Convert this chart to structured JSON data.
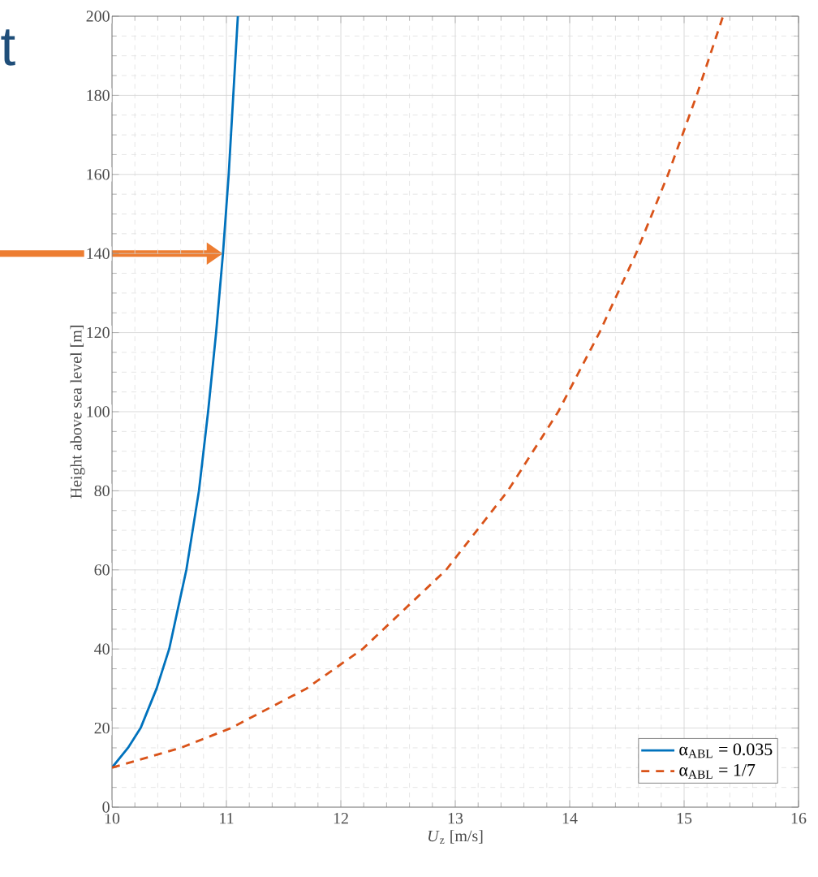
{
  "chart_data": {
    "type": "line",
    "xlabel": "*U*$_{z}$ [m/s]",
    "ylabel": "Height above sea level [m]",
    "annotations": [
      "t"
    ],
    "xlim": [
      10,
      16
    ],
    "ylim": [
      0,
      200
    ],
    "xticks": [
      10,
      11,
      12,
      13,
      14,
      15,
      16
    ],
    "yticks": [
      0,
      20,
      40,
      60,
      80,
      100,
      120,
      140,
      160,
      180,
      200
    ],
    "grid": true,
    "legend": "bottom right",
    "marker": "none",
    "series": [
      {
        "name": "α$_{ABL}$ = 0.035",
        "color": "#0072bd",
        "line_style": "solid",
        "x": [
          10,
          10.14,
          10.25,
          10.39,
          10.5,
          10.65,
          10.76,
          10.84,
          10.91,
          10.97,
          11.02,
          11.06,
          11.1
        ],
        "values": [
          10,
          15,
          20,
          30,
          40,
          60,
          80,
          100,
          120,
          140,
          160,
          180,
          200
        ]
      },
      {
        "name": "α$_{ABL}$ = 1/7",
        "color": "#d95319",
        "line_style": "dashed",
        "x": [
          10,
          10.6,
          11.04,
          11.7,
          12.19,
          12.92,
          13.46,
          13.9,
          14.26,
          14.58,
          14.86,
          15.11,
          15.34
        ],
        "values": [
          10,
          15,
          20,
          30,
          40,
          60,
          80,
          100,
          120,
          140,
          160,
          180,
          200
        ]
      }
    ]
  }
}
